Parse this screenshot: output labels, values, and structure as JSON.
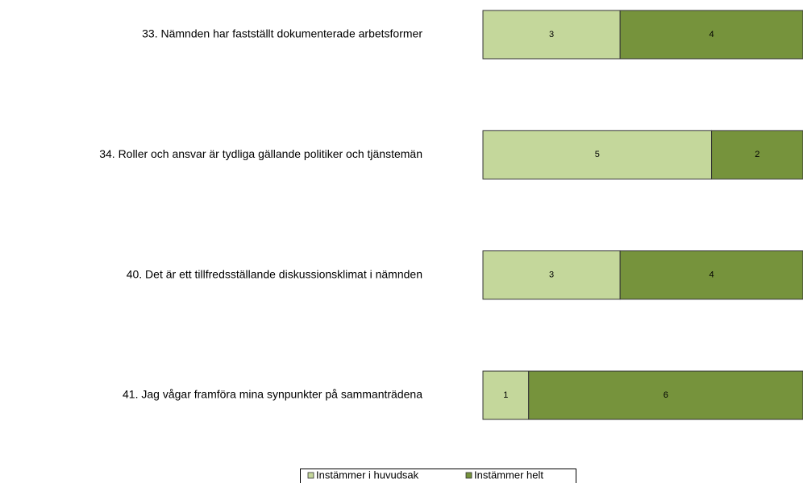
{
  "chart_data": {
    "type": "stacked_bar_horizontal",
    "categories": [
      "33. Nämnden har fastställt dokumenterade arbetsformer",
      "34. Roller och ansvar är tydliga gällande politiker och tjänstemän",
      "40. Det är ett tillfredsställande diskussionsklimat i nämnden",
      "41. Jag vågar framföra mina synpunkter på sammanträdena"
    ],
    "series": [
      {
        "name": "Instämmer i huvudsak",
        "color": "#c4d79b",
        "values": [
          3,
          5,
          3,
          1
        ]
      },
      {
        "name": "Instämmer helt",
        "color": "#76933c",
        "values": [
          4,
          2,
          4,
          6
        ]
      }
    ],
    "xlim": [
      0,
      7
    ],
    "legend": "bottom"
  }
}
